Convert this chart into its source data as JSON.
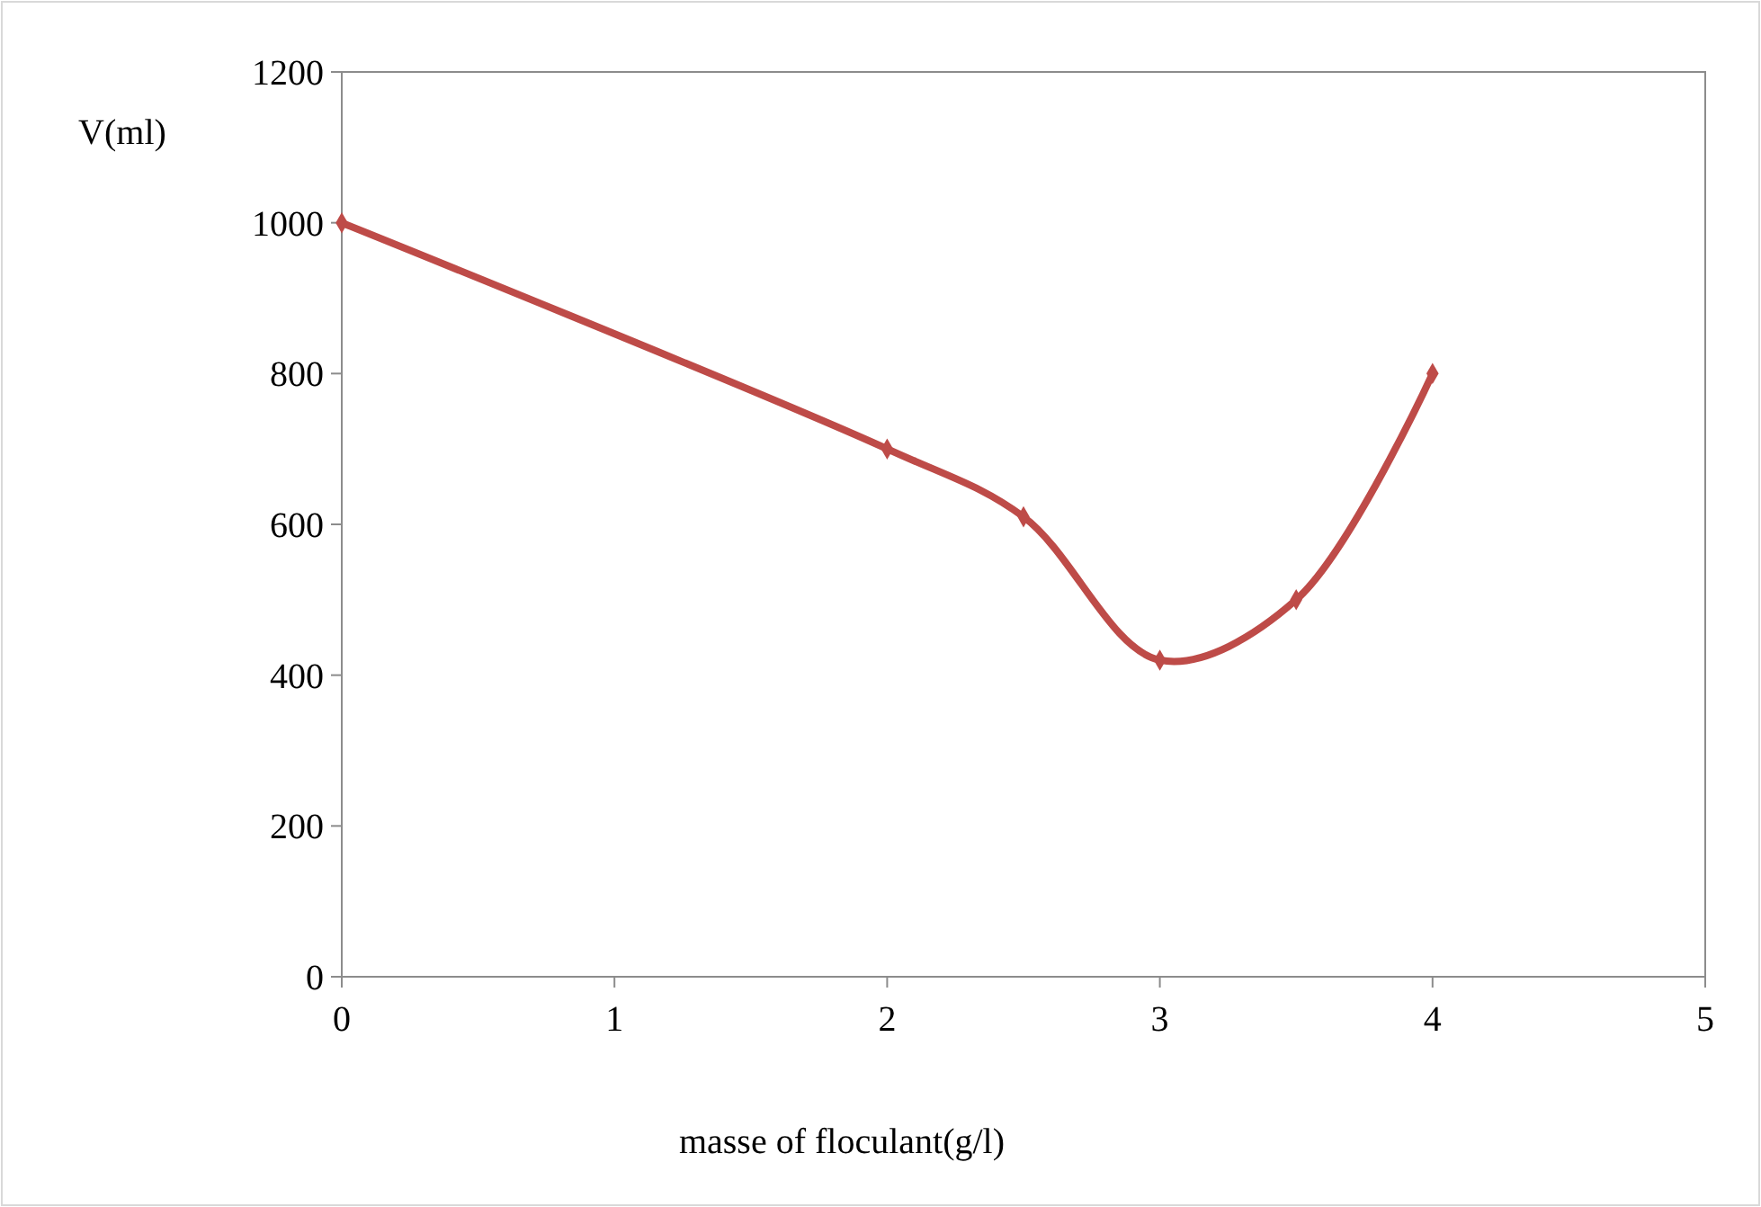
{
  "chart_data": {
    "type": "line",
    "xlabel": "masse of floculant(g/l)",
    "ylabel": "V(ml)",
    "x": [
      0,
      2,
      2.5,
      3,
      3.5,
      4
    ],
    "series": [
      {
        "color": "#be4b48",
        "values": [
          1000,
          700,
          610,
          420,
          500,
          800
        ]
      }
    ],
    "xlim": [
      0,
      5
    ],
    "xticks": [
      0,
      1,
      2,
      3,
      4,
      5
    ],
    "ylim": [
      0,
      1200
    ],
    "yticks": [
      0,
      200,
      400,
      600,
      800,
      1000,
      1200
    ],
    "grid": false,
    "marker": "diamond",
    "line_style": "solid"
  }
}
